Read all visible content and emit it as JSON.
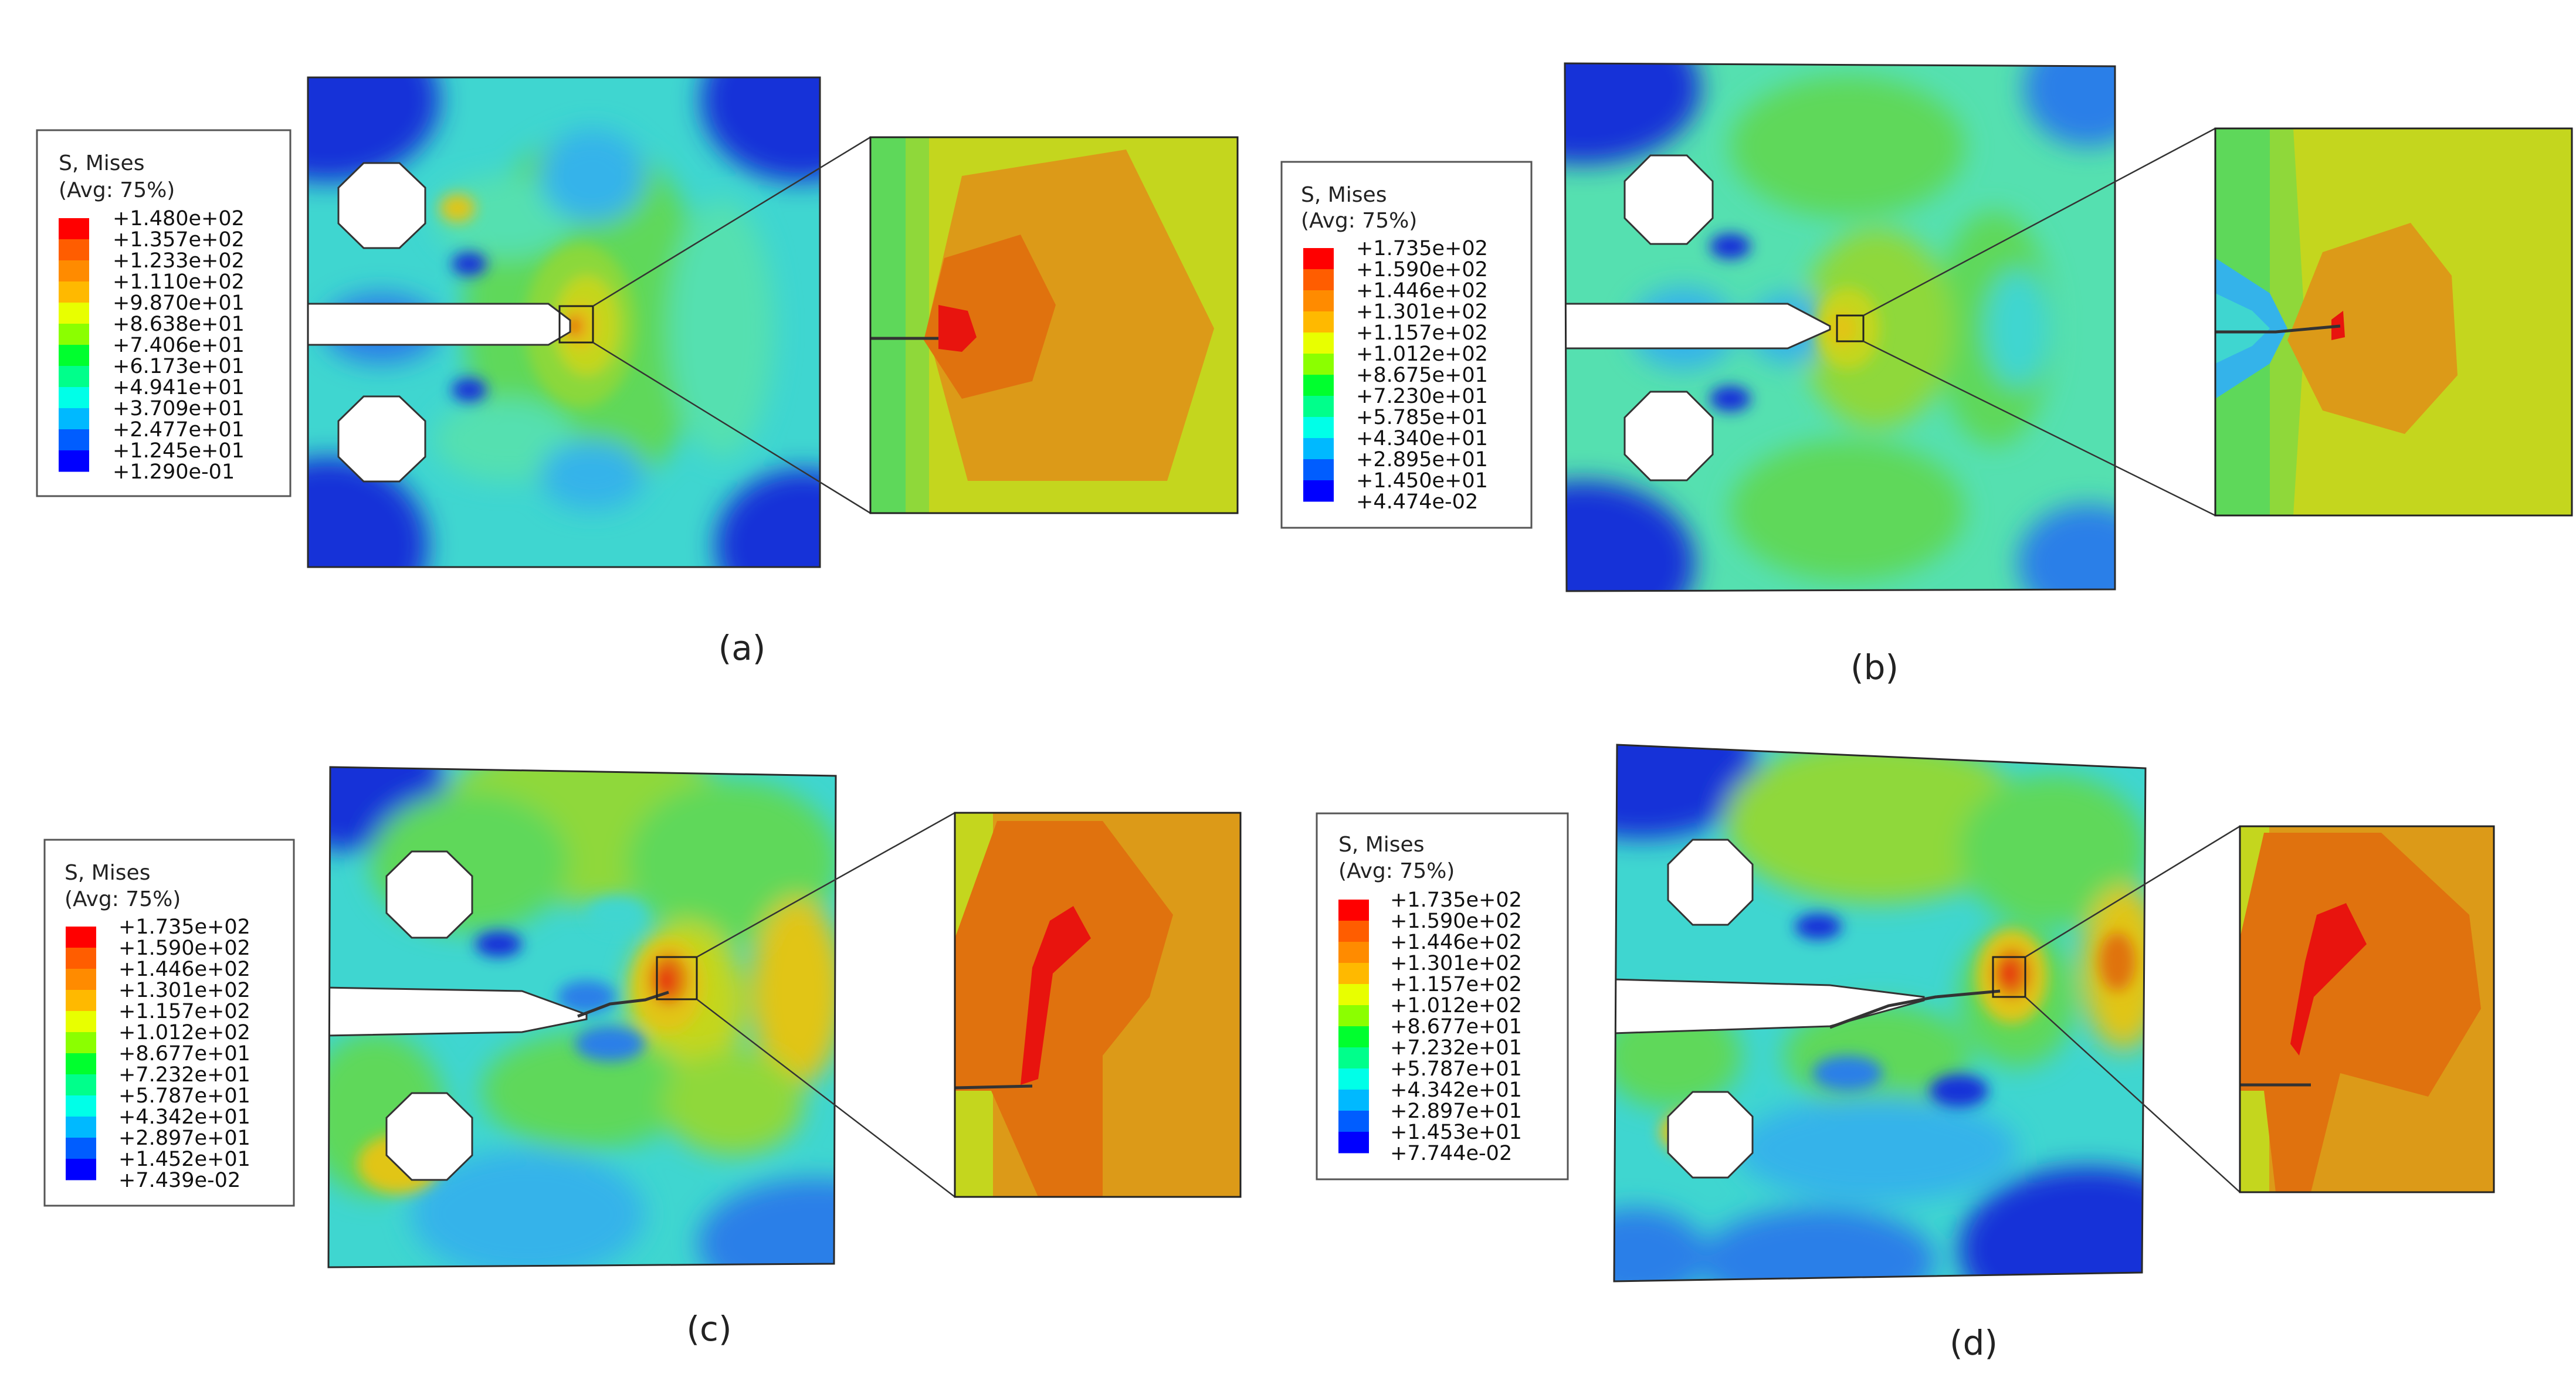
{
  "colors": {
    "scale": [
      "#0000ff",
      "#005dff",
      "#00b9ff",
      "#00ffe8",
      "#00ff8b",
      "#00ff2e",
      "#2eff00",
      "#8bff00",
      "#e8ff00",
      "#ffb900",
      "#ff8b00",
      "#ff5d00",
      "#ff0000"
    ],
    "contour": {
      "deep_blue": "#1630d8",
      "blue": "#2b7fe8",
      "light_blue": "#34b3ea",
      "cyan": "#3fd6d0",
      "aqua": "#55e0b0",
      "green": "#5ed85a",
      "light_green": "#8fd83a",
      "yellow_green": "#c4d61e",
      "yellow": "#e1c515",
      "orange": "#dc9a18",
      "dark_orange": "#e0720e",
      "red_orange": "#e84a10",
      "red": "#e8140e"
    }
  },
  "panels": [
    {
      "id": "a",
      "caption": "(a)",
      "legend": {
        "title": "S, Mises",
        "subtitle": "(Avg: 75%)",
        "values": [
          "+1.480e+02",
          "+1.357e+02",
          "+1.233e+02",
          "+1.110e+02",
          "+9.870e+01",
          "+8.638e+01",
          "+7.406e+01",
          "+6.173e+01",
          "+4.941e+01",
          "+3.709e+01",
          "+2.477e+01",
          "+1.245e+01",
          "+1.290e-01"
        ]
      }
    },
    {
      "id": "b",
      "caption": "(b)",
      "legend": {
        "title": "S, Mises",
        "subtitle": "(Avg: 75%)",
        "values": [
          "+1.735e+02",
          "+1.590e+02",
          "+1.446e+02",
          "+1.301e+02",
          "+1.157e+02",
          "+1.012e+02",
          "+8.675e+01",
          "+7.230e+01",
          "+5.785e+01",
          "+4.340e+01",
          "+2.895e+01",
          "+1.450e+01",
          "+4.474e-02"
        ]
      }
    },
    {
      "id": "c",
      "caption": "(c)",
      "legend": {
        "title": "S, Mises",
        "subtitle": "(Avg: 75%)",
        "values": [
          "+1.735e+02",
          "+1.590e+02",
          "+1.446e+02",
          "+1.301e+02",
          "+1.157e+02",
          "+1.012e+02",
          "+8.677e+01",
          "+7.232e+01",
          "+5.787e+01",
          "+4.342e+01",
          "+2.897e+01",
          "+1.452e+01",
          "+7.439e-02"
        ]
      }
    },
    {
      "id": "d",
      "caption": "(d)",
      "legend": {
        "title": "S, Mises",
        "subtitle": "(Avg: 75%)",
        "values": [
          "+1.735e+02",
          "+1.590e+02",
          "+1.446e+02",
          "+1.301e+02",
          "+1.157e+02",
          "+1.012e+02",
          "+8.677e+01",
          "+7.232e+01",
          "+5.787e+01",
          "+4.342e+01",
          "+2.897e+01",
          "+1.453e+01",
          "+7.744e-02"
        ]
      }
    }
  ]
}
